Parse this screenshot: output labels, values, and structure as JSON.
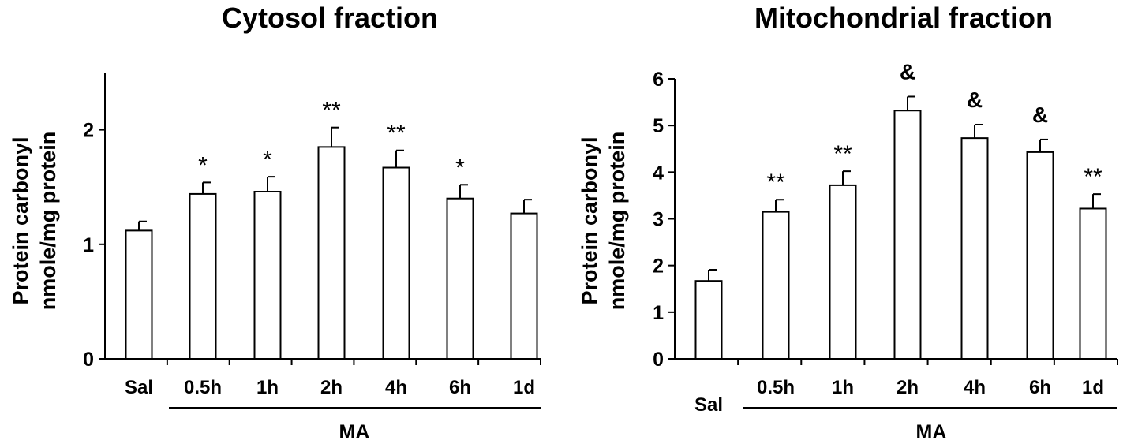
{
  "chart_data": [
    {
      "type": "bar",
      "title": "Cytosol fraction",
      "ylabel": [
        "Protein carbonyl",
        "nmole/mg protein"
      ],
      "ylim": [
        0,
        2.5
      ],
      "yticks": [
        0,
        1,
        2
      ],
      "categories": [
        "Sal",
        "0.5h",
        "1h",
        "2h",
        "4h",
        "6h",
        "1d"
      ],
      "group_label": "MA",
      "values": [
        1.12,
        1.44,
        1.46,
        1.85,
        1.67,
        1.4,
        1.27
      ],
      "errors": [
        0.08,
        0.1,
        0.13,
        0.17,
        0.15,
        0.12,
        0.12
      ],
      "annotations": [
        "",
        "*",
        "*",
        "**",
        "**",
        "*",
        ""
      ]
    },
    {
      "type": "bar",
      "title": "Mitochondrial fraction",
      "ylabel": [
        "Protein carbonyl",
        "nmole/mg protein"
      ],
      "ylim": [
        0,
        6
      ],
      "yticks": [
        0,
        1,
        2,
        3,
        4,
        5,
        6
      ],
      "categories": [
        "Sal",
        "0.5h",
        "1h",
        "2h",
        "4h",
        "6h",
        "1d"
      ],
      "group_label": "MA",
      "values": [
        1.67,
        3.15,
        3.72,
        5.32,
        4.73,
        4.43,
        3.22
      ],
      "errors": [
        0.24,
        0.26,
        0.3,
        0.3,
        0.29,
        0.27,
        0.31
      ],
      "annotations": [
        "",
        "**",
        "**",
        "&",
        "&",
        "&",
        "**"
      ]
    }
  ]
}
